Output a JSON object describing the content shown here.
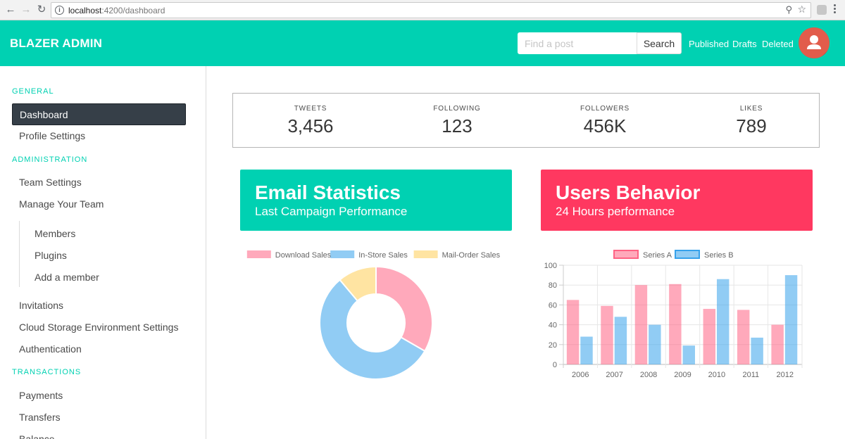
{
  "browser": {
    "url_host": "localhost",
    "url_path": ":4200/dashboard"
  },
  "navbar": {
    "brand": "BLAZER ADMIN",
    "search_placeholder": "Find a post",
    "search_button": "Search",
    "links": [
      "Published",
      "Drafts",
      "Deleted"
    ]
  },
  "sidebar": {
    "general_label": "GENERAL",
    "dashboard": "Dashboard",
    "profile_settings": "Profile Settings",
    "administration_label": "ADMINISTRATION",
    "team_settings": "Team Settings",
    "manage_team": "Manage Your Team",
    "members": "Members",
    "plugins": "Plugins",
    "add_member": "Add a member",
    "invitations": "Invitations",
    "cloud_storage": "Cloud Storage Environment Settings",
    "authentication": "Authentication",
    "transactions_label": "TRANSACTIONS",
    "payments": "Payments",
    "transfers": "Transfers",
    "balance": "Balance"
  },
  "stats": [
    {
      "heading": "TWEETS",
      "value": "3,456"
    },
    {
      "heading": "FOLLOWING",
      "value": "123"
    },
    {
      "heading": "FOLLOWERS",
      "value": "456K"
    },
    {
      "heading": "LIKES",
      "value": "789"
    }
  ],
  "email_hero": {
    "title": "Email Statistics",
    "subtitle": "Last Campaign Performance"
  },
  "users_hero": {
    "title": "Users Behavior",
    "subtitle": "24 Hours performance"
  },
  "colors": {
    "primary": "#00d1b2",
    "danger": "#ff3860",
    "pink": "#ff6384",
    "blue": "#36a2eb",
    "yellow": "#ffce56"
  },
  "chart_data": [
    {
      "type": "pie",
      "variant": "doughnut",
      "labels": [
        "Download Sales",
        "In-Store Sales",
        "Mail-Order Sales"
      ],
      "values": [
        300,
        500,
        100
      ],
      "colors": [
        "#ff6384",
        "#36a2eb",
        "#ffce56"
      ],
      "legend": "top"
    },
    {
      "type": "bar",
      "categories": [
        "2006",
        "2007",
        "2008",
        "2009",
        "2010",
        "2011",
        "2012"
      ],
      "series": [
        {
          "name": "Series A",
          "values": [
            65,
            59,
            80,
            81,
            56,
            55,
            40
          ],
          "color": "#ff6384"
        },
        {
          "name": "Series B",
          "values": [
            28,
            48,
            40,
            19,
            86,
            27,
            90
          ],
          "color": "#36a2eb"
        }
      ],
      "ylim": [
        0,
        100
      ],
      "yticks": [
        0,
        20,
        40,
        60,
        80,
        100
      ],
      "grid": true,
      "legend": "top"
    }
  ]
}
